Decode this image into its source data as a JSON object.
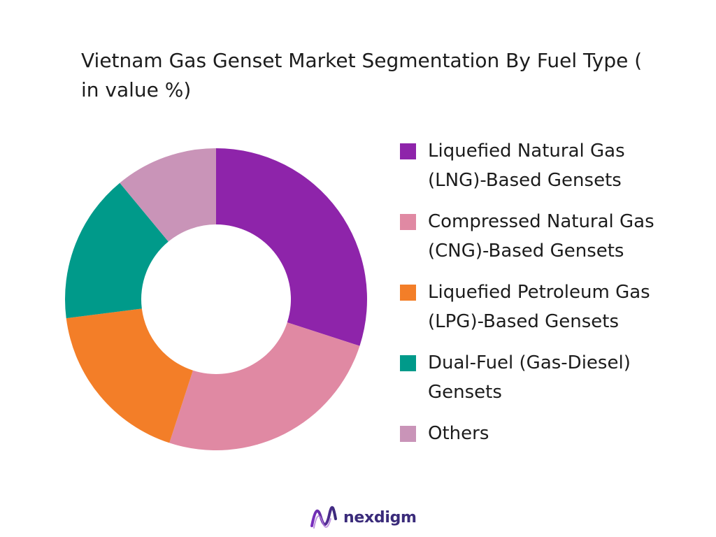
{
  "chart_data": {
    "type": "pie",
    "variant": "donut",
    "title": "Vietnam Gas Genset Market Segmentation By Fuel Type  ( in value %)",
    "categories": [
      "Liquefied Natural Gas\n(LNG)-Based Gensets",
      "Compressed Natural Gas\n(CNG)-Based Gensets",
      "Liquefied Petroleum Gas\n(LPG)-Based Gensets",
      "Dual-Fuel (Gas-Diesel)\nGensets",
      "Others"
    ],
    "values": [
      30,
      25,
      18,
      16,
      11
    ],
    "colors": [
      "#8e24aa",
      "#e089a3",
      "#f37e28",
      "#009a8a",
      "#c994b8"
    ],
    "legend_position": "right"
  },
  "brand": {
    "name": "nexdigm",
    "logo_icon": "nexdigm-wave-logo-icon",
    "color": "#3a2b7a"
  }
}
